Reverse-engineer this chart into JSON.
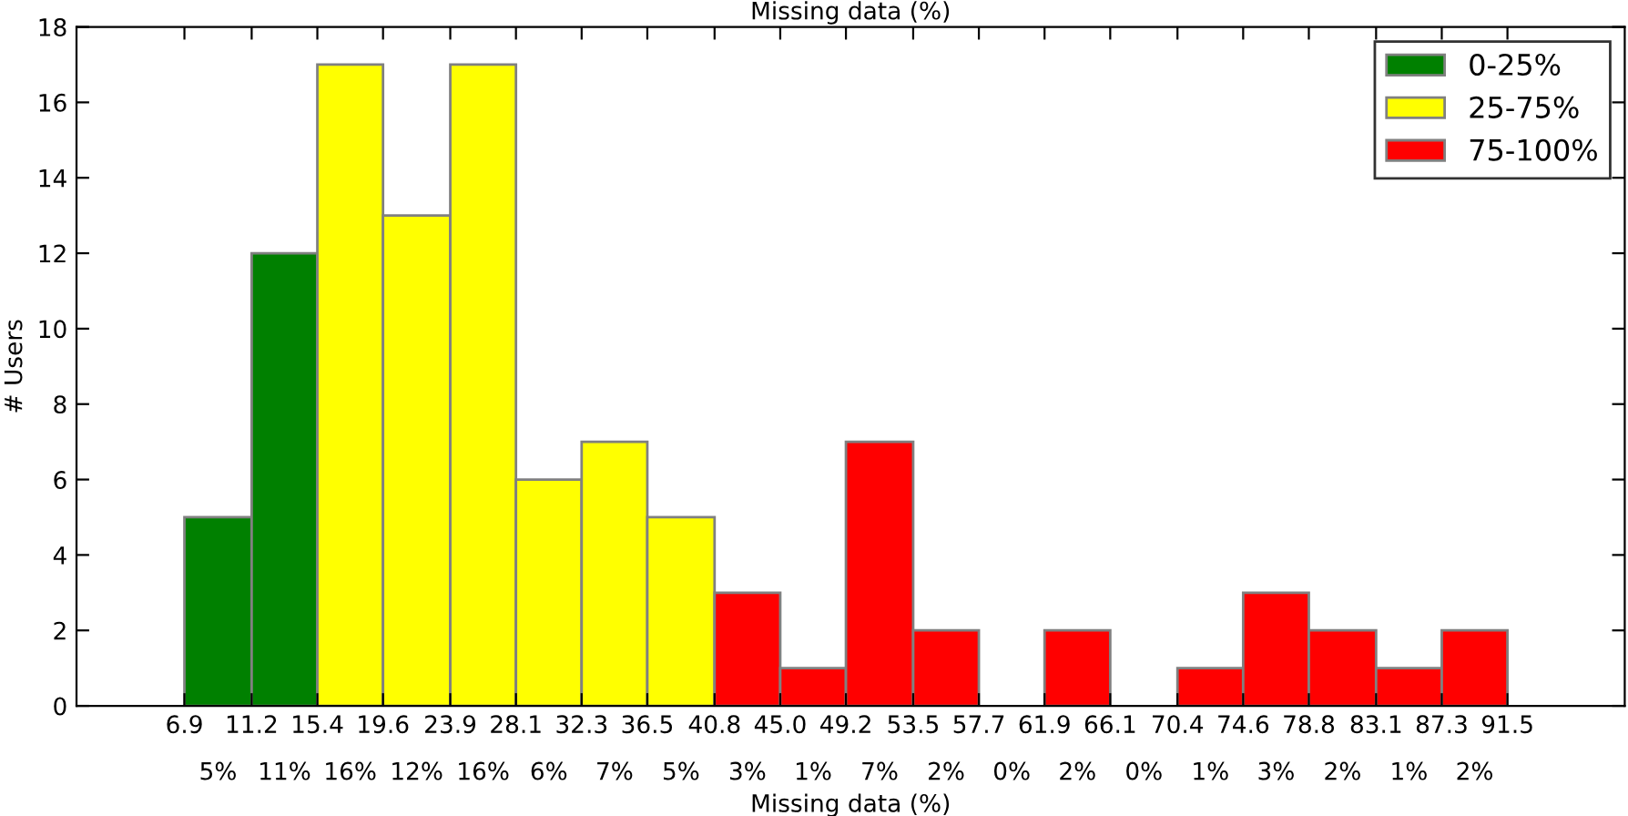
{
  "chart_data": {
    "type": "histogram",
    "title": "Missing data (%)",
    "xlabel": "Missing data (%)",
    "ylabel": "# Users",
    "bins": [
      6.9,
      11.2,
      15.4,
      19.6,
      23.9,
      28.1,
      32.3,
      36.5,
      40.8,
      45.0,
      49.2,
      53.5,
      57.7,
      61.9,
      66.1,
      70.4,
      74.6,
      78.8,
      83.1,
      87.3,
      91.5
    ],
    "series": [
      {
        "name": "0-25%",
        "color": "#008000",
        "values": [
          5,
          12,
          null,
          null,
          null,
          null,
          null,
          null,
          null,
          null,
          null,
          null,
          null,
          null,
          null,
          null,
          null,
          null,
          null,
          null
        ]
      },
      {
        "name": "25-75%",
        "color": "#ffff00",
        "values": [
          null,
          null,
          17,
          13,
          17,
          6,
          7,
          5,
          null,
          null,
          null,
          null,
          null,
          null,
          null,
          null,
          null,
          null,
          null,
          null
        ]
      },
      {
        "name": "75-100%",
        "color": "#ff0000",
        "values": [
          null,
          null,
          null,
          null,
          null,
          null,
          null,
          null,
          3,
          1,
          7,
          2,
          0,
          2,
          0,
          1,
          3,
          2,
          1,
          2
        ]
      }
    ],
    "value_labels": [
      "5%",
      "11%",
      "16%",
      "12%",
      "16%",
      "6%",
      "7%",
      "5%",
      "3%",
      "1%",
      "7%",
      "2%",
      "0%",
      "2%",
      "0%",
      "1%",
      "3%",
      "2%",
      "1%",
      "2%"
    ],
    "xlim": [
      0,
      99
    ],
    "xticks": [
      6.9,
      11.2,
      15.4,
      19.6,
      23.9,
      28.1,
      32.3,
      36.5,
      40.8,
      {
        "value": 45.0,
        "label": "45.0"
      },
      49.2,
      53.5,
      57.7,
      61.9,
      66.1,
      70.4,
      74.6,
      78.8,
      83.1,
      87.3,
      91.5
    ],
    "ylim": [
      0,
      18
    ],
    "yticks": [
      0,
      2,
      4,
      6,
      8,
      10,
      12,
      14,
      16,
      18
    ],
    "grid": false,
    "legend": "top right"
  }
}
